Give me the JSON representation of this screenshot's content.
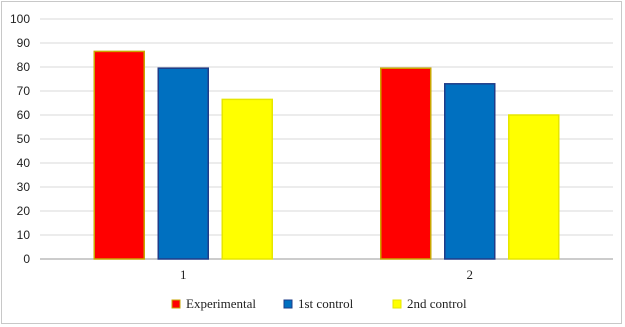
{
  "chart_data": {
    "type": "bar",
    "title": "",
    "xlabel": "",
    "ylabel": "",
    "categories": [
      "1",
      "2"
    ],
    "ylim": [
      0,
      100
    ],
    "yticks": [
      0,
      10,
      20,
      30,
      40,
      50,
      60,
      70,
      80,
      90,
      100
    ],
    "grid": true,
    "legend_position": "bottom",
    "series": [
      {
        "name": "Experimental",
        "values": [
          86.5,
          79.5
        ],
        "color": "#ff0000",
        "border": "#c9a600"
      },
      {
        "name": "1st control",
        "values": [
          79.5,
          73
        ],
        "color": "#0070c0",
        "border": "#1f3c88"
      },
      {
        "name": "2nd control",
        "values": [
          66.5,
          60
        ],
        "color": "#ffff00",
        "border": "#e6e600"
      }
    ]
  }
}
